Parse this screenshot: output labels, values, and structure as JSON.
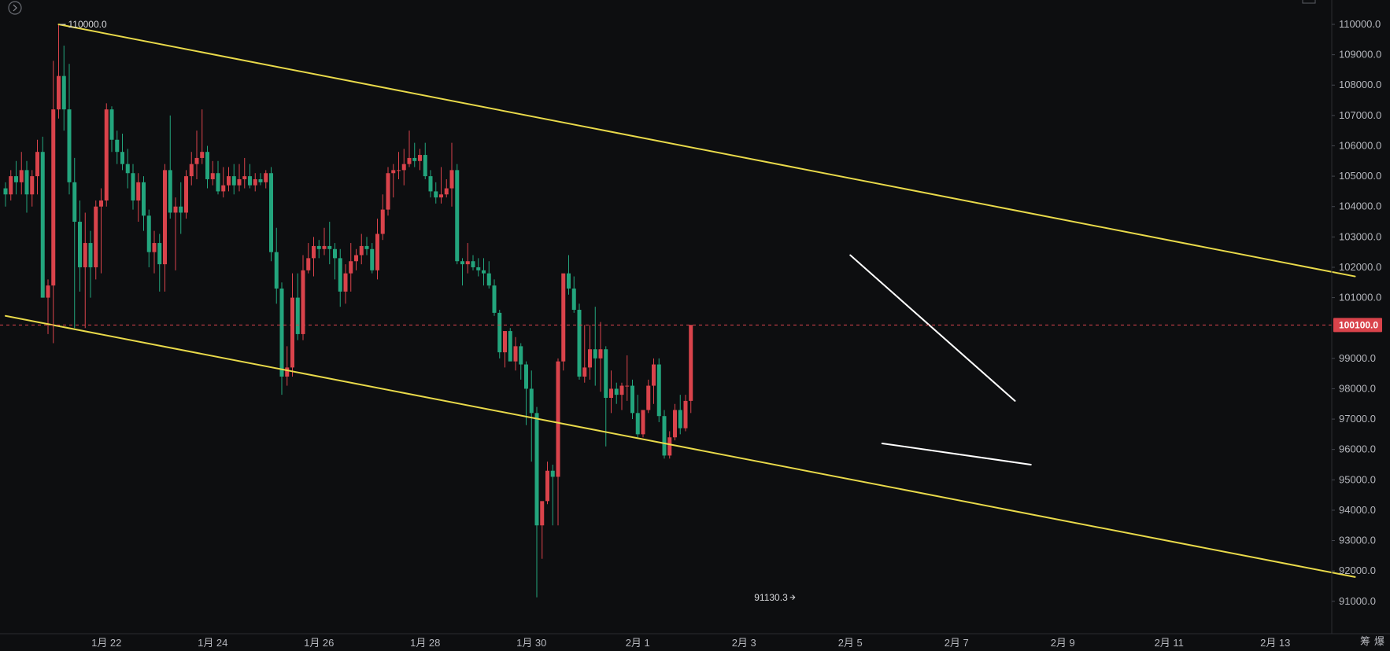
{
  "colors": {
    "background": "#0d0e10",
    "up": "#d9434b",
    "down": "#23a57d",
    "channel": "#e8d94a",
    "wedge": "#ffffff",
    "price_line": "#d9434b",
    "axis_text": "#b5b7bd"
  },
  "icons": {
    "top_left": "circle-chevron-right-icon",
    "top_right": "window-icon"
  },
  "corner_labels": [
    "筹",
    "爆"
  ],
  "current_price_label": "100100.0",
  "chart_data": {
    "type": "candlestick",
    "y_axis": {
      "min": 90000,
      "max": 110600,
      "ticks": [
        "110000.0",
        "109000.0",
        "108000.0",
        "107000.0",
        "106000.0",
        "105000.0",
        "104000.0",
        "103000.0",
        "102000.0",
        "101000.0",
        "99000.0",
        "98000.0",
        "97000.0",
        "96000.0",
        "95000.0",
        "94000.0",
        "93000.0",
        "92000.0",
        "91000.0"
      ],
      "tick_values": [
        110000,
        109000,
        108000,
        107000,
        106000,
        105000,
        104000,
        103000,
        102000,
        101000,
        99000,
        98000,
        97000,
        96000,
        95000,
        94000,
        93000,
        92000,
        91000
      ]
    },
    "x_axis": {
      "labels": [
        "1月 22",
        "1月 24",
        "1月 26",
        "1月 28",
        "1月 30",
        "2月 1",
        "2月 3",
        "2月 5",
        "2月 7",
        "2月 9",
        "2月 11",
        "2月 13"
      ],
      "label_candle_index": [
        19,
        39,
        59,
        79,
        99,
        119,
        139,
        159,
        179,
        199,
        219,
        239
      ]
    },
    "candles": [
      [
        104600,
        104800,
        104000,
        104400
      ],
      [
        104400,
        105200,
        104200,
        105000
      ],
      [
        105000,
        105500,
        104400,
        104800
      ],
      [
        104800,
        105800,
        104400,
        105200
      ],
      [
        105200,
        105500,
        103800,
        104400
      ],
      [
        104400,
        105200,
        104000,
        105000
      ],
      [
        105000,
        106200,
        104400,
        105800
      ],
      [
        105800,
        106300,
        101000,
        101000
      ],
      [
        101000,
        101600,
        99800,
        101400
      ],
      [
        101400,
        108800,
        99500,
        107200
      ],
      [
        107200,
        110000,
        106900,
        108300
      ],
      [
        108300,
        109300,
        106500,
        107200
      ],
      [
        107200,
        108700,
        104400,
        104800
      ],
      [
        104800,
        105600,
        100000,
        103500
      ],
      [
        103500,
        104200,
        101200,
        102000
      ],
      [
        102000,
        103800,
        100000,
        102800
      ],
      [
        102800,
        103200,
        101000,
        102000
      ],
      [
        102000,
        104200,
        101600,
        104000
      ],
      [
        104000,
        104600,
        101800,
        104200
      ],
      [
        104200,
        107400,
        104000,
        107200
      ],
      [
        107200,
        107300,
        105800,
        106200
      ],
      [
        106200,
        106500,
        105400,
        105800
      ],
      [
        105800,
        106400,
        105200,
        105400
      ],
      [
        105400,
        105900,
        104600,
        105100
      ],
      [
        105100,
        105400,
        103900,
        104200
      ],
      [
        104200,
        105100,
        103500,
        104800
      ],
      [
        104800,
        105000,
        103200,
        103700
      ],
      [
        103700,
        103900,
        102000,
        102500
      ],
      [
        102500,
        103200,
        101800,
        102800
      ],
      [
        102800,
        103100,
        101200,
        102100
      ],
      [
        102100,
        105400,
        101200,
        105200
      ],
      [
        105200,
        107000,
        103600,
        103800
      ],
      [
        103800,
        104300,
        101900,
        104000
      ],
      [
        104000,
        104800,
        103100,
        103800
      ],
      [
        103800,
        105200,
        103600,
        105000
      ],
      [
        105000,
        105800,
        104700,
        105400
      ],
      [
        105400,
        106500,
        104900,
        105600
      ],
      [
        105600,
        107200,
        105400,
        105800
      ],
      [
        105800,
        106000,
        104600,
        104900
      ],
      [
        104900,
        105500,
        104700,
        105100
      ],
      [
        105100,
        105500,
        104400,
        104500
      ],
      [
        104500,
        105300,
        104300,
        104700
      ],
      [
        104700,
        105300,
        104500,
        105000
      ],
      [
        105000,
        105400,
        104400,
        104700
      ],
      [
        104700,
        105400,
        104500,
        104900
      ],
      [
        104900,
        105600,
        104600,
        105000
      ],
      [
        105000,
        105400,
        104600,
        104700
      ],
      [
        104700,
        105100,
        104500,
        104900
      ],
      [
        104900,
        105100,
        104700,
        104800
      ],
      [
        104800,
        105200,
        104600,
        105100
      ],
      [
        105100,
        105300,
        102200,
        102500
      ],
      [
        102500,
        103300,
        100800,
        101300
      ],
      [
        101300,
        101500,
        97800,
        98400
      ],
      [
        98400,
        99400,
        98100,
        98700
      ],
      [
        98700,
        101800,
        98400,
        101000
      ],
      [
        101000,
        101800,
        99600,
        99800
      ],
      [
        99800,
        102400,
        99600,
        101900
      ],
      [
        101900,
        102800,
        101800,
        102300
      ],
      [
        102300,
        103000,
        101700,
        102700
      ],
      [
        102700,
        102900,
        102300,
        102600
      ],
      [
        102600,
        103300,
        102400,
        102700
      ],
      [
        102700,
        103500,
        102100,
        102600
      ],
      [
        102600,
        102800,
        101600,
        102300
      ],
      [
        102300,
        102600,
        100700,
        101200
      ],
      [
        101200,
        102100,
        100800,
        101800
      ],
      [
        101800,
        102800,
        101200,
        102200
      ],
      [
        102200,
        102600,
        101900,
        102400
      ],
      [
        102400,
        103100,
        102100,
        102700
      ],
      [
        102700,
        103000,
        102400,
        102600
      ],
      [
        102600,
        102800,
        101800,
        101900
      ],
      [
        101900,
        103600,
        101600,
        103100
      ],
      [
        103100,
        104400,
        102900,
        103900
      ],
      [
        103900,
        105300,
        103700,
        105100
      ],
      [
        105100,
        105400,
        104300,
        105200
      ],
      [
        105200,
        105800,
        104900,
        105200
      ],
      [
        105200,
        105900,
        104700,
        105400
      ],
      [
        105400,
        106500,
        105300,
        105600
      ],
      [
        105600,
        106100,
        105300,
        105500
      ],
      [
        105500,
        105900,
        105200,
        105700
      ],
      [
        105700,
        106100,
        104900,
        105000
      ],
      [
        105000,
        105200,
        104300,
        104500
      ],
      [
        104500,
        104800,
        104100,
        104300
      ],
      [
        104300,
        105300,
        104100,
        104400
      ],
      [
        104400,
        104900,
        104300,
        104600
      ],
      [
        104600,
        106100,
        104000,
        105200
      ],
      [
        105200,
        105400,
        102100,
        102200
      ],
      [
        102200,
        102300,
        101400,
        102100
      ],
      [
        102100,
        102800,
        101800,
        102200
      ],
      [
        102200,
        102400,
        101900,
        102000
      ],
      [
        102000,
        102300,
        101700,
        101900
      ],
      [
        101900,
        102300,
        101400,
        101800
      ],
      [
        101800,
        102200,
        101300,
        101400
      ],
      [
        101400,
        101600,
        100400,
        100500
      ],
      [
        100500,
        100600,
        99000,
        99200
      ],
      [
        99200,
        99900,
        98700,
        99900
      ],
      [
        99900,
        100000,
        99000,
        98900
      ],
      [
        98900,
        99700,
        98600,
        99400
      ],
      [
        99400,
        99500,
        98300,
        98800
      ],
      [
        98800,
        98900,
        96800,
        98000
      ],
      [
        98000,
        98600,
        95600,
        97200
      ],
      [
        97200,
        97400,
        91130,
        93500
      ],
      [
        93500,
        94200,
        92400,
        94300
      ],
      [
        94300,
        95600,
        94200,
        95300
      ],
      [
        95300,
        95500,
        93500,
        95100
      ],
      [
        95100,
        99000,
        93500,
        98900
      ],
      [
        98900,
        101700,
        98600,
        101800
      ],
      [
        101800,
        102400,
        101100,
        101300
      ],
      [
        101300,
        101700,
        100500,
        100600
      ],
      [
        100600,
        100800,
        98300,
        98400
      ],
      [
        98400,
        100100,
        98200,
        98700
      ],
      [
        98700,
        100100,
        98300,
        99300
      ],
      [
        99300,
        100700,
        98100,
        99000
      ],
      [
        99000,
        100200,
        97900,
        99300
      ],
      [
        99300,
        99400,
        96100,
        97700
      ],
      [
        97700,
        98600,
        97200,
        98000
      ],
      [
        98000,
        98200,
        97500,
        97800
      ],
      [
        97800,
        98200,
        97300,
        98100
      ],
      [
        98100,
        99100,
        97600,
        98100
      ],
      [
        98100,
        98300,
        97000,
        97200
      ],
      [
        97200,
        97800,
        96400,
        96500
      ],
      [
        96500,
        97300,
        96400,
        97300
      ],
      [
        97300,
        98300,
        97200,
        98100
      ],
      [
        98100,
        99000,
        97500,
        98800
      ],
      [
        98800,
        99000,
        96900,
        97100
      ],
      [
        97100,
        97300,
        95700,
        95800
      ],
      [
        95800,
        96600,
        95700,
        96400
      ],
      [
        96400,
        97500,
        96300,
        97300
      ],
      [
        97300,
        97800,
        96500,
        96700
      ],
      [
        96700,
        97800,
        96600,
        97600
      ],
      [
        97600,
        100100,
        97200,
        100100
      ]
    ],
    "channel_upper": [
      [
        10,
        110000
      ],
      [
        254,
        101700
      ]
    ],
    "channel_lower": [
      [
        0,
        100400
      ],
      [
        254,
        91800
      ]
    ],
    "wedge_upper": [
      [
        159,
        102400
      ],
      [
        190,
        97600
      ]
    ],
    "wedge_lower": [
      [
        165,
        96200
      ],
      [
        193,
        95500
      ]
    ],
    "reference_line": 100100,
    "annotations": [
      {
        "text": "110000.0",
        "x": 10,
        "y": 110000
      },
      {
        "text": "91130.3",
        "x": 149,
        "y": 91130
      }
    ]
  }
}
